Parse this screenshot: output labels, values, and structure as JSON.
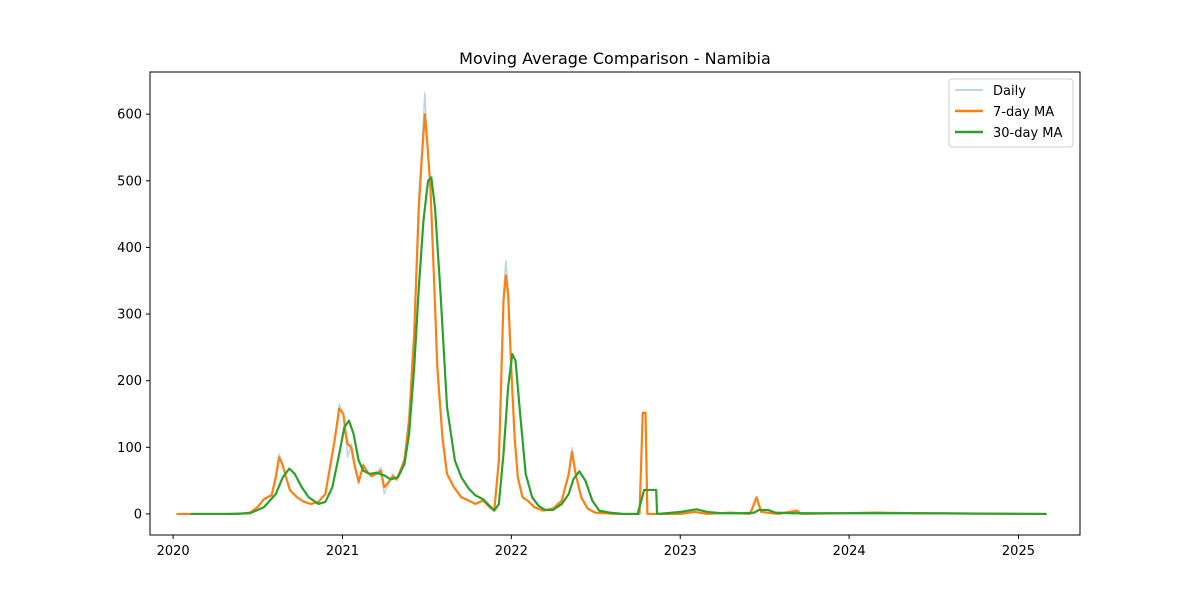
{
  "chart_data": {
    "type": "line",
    "title": "Moving Average Comparison - Namibia",
    "xlabel": "",
    "ylabel": "",
    "xlim": [
      "2019-11-12",
      "2025-05-14"
    ],
    "ylim": [
      -31.6,
      663.3
    ],
    "x_ticks": [
      "2020",
      "2021",
      "2022",
      "2023",
      "2024",
      "2025"
    ],
    "y_ticks": [
      "0",
      "100",
      "200",
      "300",
      "400",
      "500",
      "600"
    ],
    "grid": false,
    "legend_position": "top-right",
    "series": [
      {
        "name": "Daily",
        "color": "#1f77b4",
        "opacity": 0.3,
        "points": [
          [
            "2020-01-10",
            0
          ],
          [
            "2020-02-15",
            0
          ],
          [
            "2020-04-01",
            0
          ],
          [
            "2020-05-20",
            0
          ],
          [
            "2020-06-15",
            2
          ],
          [
            "2020-07-01",
            10
          ],
          [
            "2020-07-15",
            22
          ],
          [
            "2020-08-01",
            30
          ],
          [
            "2020-08-10",
            60
          ],
          [
            "2020-08-17",
            90
          ],
          [
            "2020-08-24",
            75
          ],
          [
            "2020-09-01",
            55
          ],
          [
            "2020-09-10",
            35
          ],
          [
            "2020-09-25",
            25
          ],
          [
            "2020-10-10",
            18
          ],
          [
            "2020-10-25",
            15
          ],
          [
            "2020-11-10",
            18
          ],
          [
            "2020-11-25",
            30
          ],
          [
            "2020-12-05",
            70
          ],
          [
            "2020-12-15",
            110
          ],
          [
            "2020-12-25",
            165
          ],
          [
            "2021-01-03",
            150
          ],
          [
            "2021-01-08",
            120
          ],
          [
            "2021-01-12",
            85
          ],
          [
            "2021-01-20",
            105
          ],
          [
            "2021-01-28",
            75
          ],
          [
            "2021-02-05",
            45
          ],
          [
            "2021-02-15",
            75
          ],
          [
            "2021-02-25",
            62
          ],
          [
            "2021-03-05",
            55
          ],
          [
            "2021-03-15",
            60
          ],
          [
            "2021-03-25",
            70
          ],
          [
            "2021-04-01",
            30
          ],
          [
            "2021-04-10",
            45
          ],
          [
            "2021-04-20",
            60
          ],
          [
            "2021-04-28",
            50
          ],
          [
            "2021-05-05",
            65
          ],
          [
            "2021-05-15",
            85
          ],
          [
            "2021-05-25",
            150
          ],
          [
            "2021-06-05",
            280
          ],
          [
            "2021-06-15",
            480
          ],
          [
            "2021-06-22",
            550
          ],
          [
            "2021-06-28",
            632
          ],
          [
            "2021-07-03",
            560
          ],
          [
            "2021-07-10",
            500
          ],
          [
            "2021-07-18",
            350
          ],
          [
            "2021-07-25",
            220
          ],
          [
            "2021-08-05",
            120
          ],
          [
            "2021-08-15",
            60
          ],
          [
            "2021-08-30",
            40
          ],
          [
            "2021-09-15",
            25
          ],
          [
            "2021-10-01",
            20
          ],
          [
            "2021-10-15",
            15
          ],
          [
            "2021-11-01",
            22
          ],
          [
            "2021-11-15",
            10
          ],
          [
            "2021-11-25",
            5
          ],
          [
            "2021-12-05",
            80
          ],
          [
            "2021-12-10",
            200
          ],
          [
            "2021-12-15",
            330
          ],
          [
            "2021-12-20",
            380
          ],
          [
            "2021-12-25",
            340
          ],
          [
            "2022-01-01",
            220
          ],
          [
            "2022-01-08",
            120
          ],
          [
            "2022-01-15",
            55
          ],
          [
            "2022-01-25",
            25
          ],
          [
            "2022-02-05",
            20
          ],
          [
            "2022-02-20",
            10
          ],
          [
            "2022-03-10",
            5
          ],
          [
            "2022-04-01",
            8
          ],
          [
            "2022-04-20",
            20
          ],
          [
            "2022-05-05",
            60
          ],
          [
            "2022-05-12",
            100
          ],
          [
            "2022-05-20",
            60
          ],
          [
            "2022-06-01",
            25
          ],
          [
            "2022-06-15",
            8
          ],
          [
            "2022-07-01",
            2
          ],
          [
            "2022-08-15",
            0
          ],
          [
            "2022-09-20",
            0
          ],
          [
            "2022-10-05",
            0
          ],
          [
            "2022-10-12",
            150
          ],
          [
            "2022-10-18",
            150
          ],
          [
            "2022-10-22",
            0
          ],
          [
            "2022-11-15",
            0
          ],
          [
            "2023-01-01",
            0
          ],
          [
            "2023-02-01",
            3
          ],
          [
            "2023-03-01",
            0
          ],
          [
            "2023-04-20",
            2
          ],
          [
            "2023-06-01",
            0
          ],
          [
            "2023-06-15",
            25
          ],
          [
            "2023-06-25",
            3
          ],
          [
            "2023-08-01",
            0
          ],
          [
            "2023-09-10",
            5
          ],
          [
            "2023-09-20",
            0
          ],
          [
            "2024-03-01",
            2
          ],
          [
            "2024-06-01",
            1
          ],
          [
            "2025-03-01",
            0
          ]
        ]
      },
      {
        "name": "7-day MA",
        "color": "#ff7f0e",
        "opacity": 1,
        "points": [
          [
            "2020-01-10",
            0
          ],
          [
            "2020-02-15",
            0
          ],
          [
            "2020-04-01",
            0
          ],
          [
            "2020-05-20",
            0
          ],
          [
            "2020-06-15",
            2
          ],
          [
            "2020-07-01",
            10
          ],
          [
            "2020-07-15",
            22
          ],
          [
            "2020-08-01",
            28
          ],
          [
            "2020-08-10",
            55
          ],
          [
            "2020-08-17",
            85
          ],
          [
            "2020-08-24",
            75
          ],
          [
            "2020-09-01",
            55
          ],
          [
            "2020-09-10",
            35
          ],
          [
            "2020-09-25",
            25
          ],
          [
            "2020-10-10",
            18
          ],
          [
            "2020-10-25",
            15
          ],
          [
            "2020-11-10",
            18
          ],
          [
            "2020-11-25",
            30
          ],
          [
            "2020-12-05",
            70
          ],
          [
            "2020-12-15",
            110
          ],
          [
            "2020-12-25",
            158
          ],
          [
            "2021-01-03",
            150
          ],
          [
            "2021-01-08",
            120
          ],
          [
            "2021-01-12",
            105
          ],
          [
            "2021-01-20",
            100
          ],
          [
            "2021-01-28",
            70
          ],
          [
            "2021-02-05",
            48
          ],
          [
            "2021-02-15",
            73
          ],
          [
            "2021-02-25",
            62
          ],
          [
            "2021-03-05",
            57
          ],
          [
            "2021-03-15",
            60
          ],
          [
            "2021-03-25",
            65
          ],
          [
            "2021-04-01",
            40
          ],
          [
            "2021-04-10",
            47
          ],
          [
            "2021-04-20",
            57
          ],
          [
            "2021-04-28",
            52
          ],
          [
            "2021-05-05",
            63
          ],
          [
            "2021-05-15",
            80
          ],
          [
            "2021-05-25",
            140
          ],
          [
            "2021-06-05",
            270
          ],
          [
            "2021-06-15",
            460
          ],
          [
            "2021-06-22",
            540
          ],
          [
            "2021-06-28",
            600
          ],
          [
            "2021-07-03",
            560
          ],
          [
            "2021-07-10",
            490
          ],
          [
            "2021-07-18",
            350
          ],
          [
            "2021-07-25",
            220
          ],
          [
            "2021-08-05",
            115
          ],
          [
            "2021-08-15",
            60
          ],
          [
            "2021-08-30",
            40
          ],
          [
            "2021-09-15",
            25
          ],
          [
            "2021-10-01",
            20
          ],
          [
            "2021-10-15",
            15
          ],
          [
            "2021-11-01",
            20
          ],
          [
            "2021-11-15",
            10
          ],
          [
            "2021-11-25",
            5
          ],
          [
            "2021-12-05",
            80
          ],
          [
            "2021-12-10",
            200
          ],
          [
            "2021-12-15",
            320
          ],
          [
            "2021-12-20",
            358
          ],
          [
            "2021-12-25",
            330
          ],
          [
            "2022-01-01",
            215
          ],
          [
            "2022-01-08",
            115
          ],
          [
            "2022-01-15",
            55
          ],
          [
            "2022-01-25",
            25
          ],
          [
            "2022-02-05",
            20
          ],
          [
            "2022-02-20",
            10
          ],
          [
            "2022-03-10",
            5
          ],
          [
            "2022-04-01",
            8
          ],
          [
            "2022-04-20",
            20
          ],
          [
            "2022-05-05",
            60
          ],
          [
            "2022-05-12",
            93
          ],
          [
            "2022-05-20",
            60
          ],
          [
            "2022-06-01",
            25
          ],
          [
            "2022-06-15",
            8
          ],
          [
            "2022-07-01",
            2
          ],
          [
            "2022-08-15",
            0
          ],
          [
            "2022-09-20",
            0
          ],
          [
            "2022-10-05",
            0
          ],
          [
            "2022-10-12",
            152
          ],
          [
            "2022-10-18",
            152
          ],
          [
            "2022-10-22",
            0
          ],
          [
            "2022-11-15",
            0
          ],
          [
            "2023-01-01",
            0
          ],
          [
            "2023-02-01",
            3
          ],
          [
            "2023-03-01",
            0
          ],
          [
            "2023-04-20",
            2
          ],
          [
            "2023-06-01",
            0
          ],
          [
            "2023-06-15",
            25
          ],
          [
            "2023-06-25",
            3
          ],
          [
            "2023-08-01",
            0
          ],
          [
            "2023-09-10",
            5
          ],
          [
            "2023-09-20",
            0
          ],
          [
            "2024-03-01",
            2
          ],
          [
            "2024-06-01",
            1
          ],
          [
            "2025-03-01",
            0
          ]
        ]
      },
      {
        "name": "30-day MA",
        "color": "#2ca02c",
        "opacity": 1,
        "points": [
          [
            "2020-02-10",
            0
          ],
          [
            "2020-05-01",
            0
          ],
          [
            "2020-06-15",
            1
          ],
          [
            "2020-07-15",
            10
          ],
          [
            "2020-08-10",
            30
          ],
          [
            "2020-08-25",
            55
          ],
          [
            "2020-09-08",
            68
          ],
          [
            "2020-09-20",
            60
          ],
          [
            "2020-10-05",
            40
          ],
          [
            "2020-10-20",
            25
          ],
          [
            "2020-11-10",
            15
          ],
          [
            "2020-11-25",
            18
          ],
          [
            "2020-12-10",
            40
          ],
          [
            "2020-12-25",
            90
          ],
          [
            "2021-01-05",
            130
          ],
          [
            "2021-01-15",
            140
          ],
          [
            "2021-01-25",
            120
          ],
          [
            "2021-02-05",
            80
          ],
          [
            "2021-02-15",
            65
          ],
          [
            "2021-03-01",
            60
          ],
          [
            "2021-03-15",
            62
          ],
          [
            "2021-04-01",
            58
          ],
          [
            "2021-04-15",
            52
          ],
          [
            "2021-05-01",
            55
          ],
          [
            "2021-05-15",
            75
          ],
          [
            "2021-05-25",
            120
          ],
          [
            "2021-06-05",
            220
          ],
          [
            "2021-06-15",
            340
          ],
          [
            "2021-06-25",
            440
          ],
          [
            "2021-07-05",
            500
          ],
          [
            "2021-07-12",
            505
          ],
          [
            "2021-07-20",
            460
          ],
          [
            "2021-08-01",
            330
          ],
          [
            "2021-08-15",
            160
          ],
          [
            "2021-09-01",
            80
          ],
          [
            "2021-09-15",
            55
          ],
          [
            "2021-10-01",
            38
          ],
          [
            "2021-10-15",
            28
          ],
          [
            "2021-11-01",
            22
          ],
          [
            "2021-11-15",
            12
          ],
          [
            "2021-11-25",
            5
          ],
          [
            "2021-12-05",
            15
          ],
          [
            "2021-12-15",
            90
          ],
          [
            "2021-12-25",
            190
          ],
          [
            "2022-01-03",
            240
          ],
          [
            "2022-01-10",
            230
          ],
          [
            "2022-01-20",
            150
          ],
          [
            "2022-02-01",
            60
          ],
          [
            "2022-02-15",
            25
          ],
          [
            "2022-03-01",
            12
          ],
          [
            "2022-03-15",
            6
          ],
          [
            "2022-04-01",
            6
          ],
          [
            "2022-04-20",
            15
          ],
          [
            "2022-05-05",
            30
          ],
          [
            "2022-05-15",
            52
          ],
          [
            "2022-05-28",
            64
          ],
          [
            "2022-06-10",
            50
          ],
          [
            "2022-06-25",
            20
          ],
          [
            "2022-07-10",
            5
          ],
          [
            "2022-08-01",
            2
          ],
          [
            "2022-09-01",
            0
          ],
          [
            "2022-10-01",
            0
          ],
          [
            "2022-10-15",
            36
          ],
          [
            "2022-11-10",
            36
          ],
          [
            "2022-11-12",
            0
          ],
          [
            "2022-12-01",
            1
          ],
          [
            "2023-01-01",
            3
          ],
          [
            "2023-02-05",
            7
          ],
          [
            "2023-03-01",
            3
          ],
          [
            "2023-04-01",
            1
          ],
          [
            "2023-05-15",
            1
          ],
          [
            "2023-06-10",
            2
          ],
          [
            "2023-06-20",
            6
          ],
          [
            "2023-07-10",
            6
          ],
          [
            "2023-07-25",
            2
          ],
          [
            "2023-09-01",
            1
          ],
          [
            "2023-10-01",
            1
          ],
          [
            "2024-01-01",
            1
          ],
          [
            "2024-03-01",
            1
          ],
          [
            "2024-06-01",
            1
          ],
          [
            "2025-03-01",
            0
          ]
        ]
      }
    ]
  }
}
